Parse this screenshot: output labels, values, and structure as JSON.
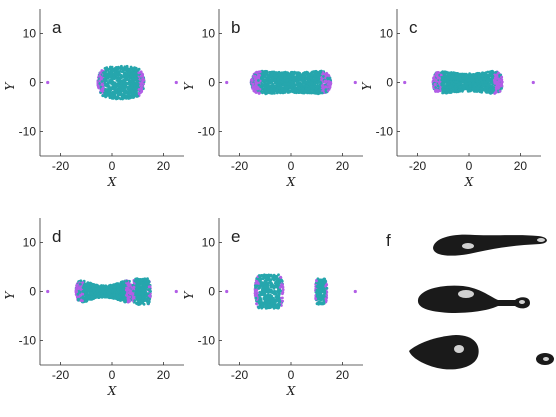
{
  "chart_data": [
    {
      "type": "scatter",
      "panel_label": "a",
      "xlabel": "X",
      "ylabel": "Y",
      "xlim": [
        -28,
        28
      ],
      "ylim": [
        -15,
        15
      ],
      "xticks": [
        -20,
        0,
        20
      ],
      "yticks": [
        10,
        0,
        -10
      ],
      "xtick_labels": [
        "-20",
        "0",
        "20"
      ],
      "ytick_labels": [
        "10",
        "0",
        "-10"
      ],
      "series": [
        {
          "role": "outer",
          "color": "#b25ee6",
          "values": [
            [
              -25,
              0
            ],
            [
              25,
              0
            ]
          ]
        },
        {
          "role": "cloud",
          "color": "#26a6ad",
          "lobes": [
            {
              "x0": -5.5,
              "x1": 12.5,
              "r_end": 2.6,
              "r_mid": 3.4,
              "edge_color": "#b25ee6"
            }
          ]
        }
      ]
    },
    {
      "type": "scatter",
      "panel_label": "b",
      "xlabel": "X",
      "ylabel": "Y",
      "xlim": [
        -28,
        28
      ],
      "ylim": [
        -15,
        15
      ],
      "xticks": [
        -20,
        0,
        20
      ],
      "yticks": [
        10,
        0,
        -10
      ],
      "xtick_labels": [
        "-20",
        "0",
        "20"
      ],
      "ytick_labels": [
        "10",
        "0",
        "-10"
      ],
      "series": [
        {
          "role": "outer",
          "color": "#b25ee6",
          "values": [
            [
              -25,
              0
            ],
            [
              25,
              0
            ]
          ]
        },
        {
          "role": "cloud",
          "color": "#26a6ad",
          "lobes": [
            {
              "x0": -15.5,
              "x1": 15.5,
              "r_end": 2.6,
              "r_mid": 2.1,
              "edge_color": "#b25ee6"
            }
          ]
        }
      ]
    },
    {
      "type": "scatter",
      "panel_label": "c",
      "xlabel": "X",
      "ylabel": "Y",
      "xlim": [
        -28,
        28
      ],
      "ylim": [
        -15,
        15
      ],
      "xticks": [
        -20,
        0,
        20
      ],
      "yticks": [
        10,
        0,
        -10
      ],
      "xtick_labels": [
        "-20",
        "0",
        "20"
      ],
      "ytick_labels": [
        "10",
        "0",
        "-10"
      ],
      "series": [
        {
          "role": "outer",
          "color": "#b25ee6",
          "values": [
            [
              -25,
              0
            ],
            [
              25,
              0
            ]
          ]
        },
        {
          "role": "cloud",
          "color": "#26a6ad",
          "lobes": [
            {
              "x0": -14,
              "x1": 13,
              "r_end": 2.8,
              "r_mid": 1.8,
              "edge_color": "#b25ee6"
            }
          ]
        }
      ]
    },
    {
      "type": "scatter",
      "panel_label": "d",
      "xlabel": "X",
      "ylabel": "Y",
      "xlim": [
        -28,
        28
      ],
      "ylim": [
        -15,
        15
      ],
      "xticks": [
        -20,
        0,
        20
      ],
      "yticks": [
        10,
        0,
        -10
      ],
      "xtick_labels": [
        "-20",
        "0",
        "20"
      ],
      "ytick_labels": [
        "10",
        "0",
        "-10"
      ],
      "series": [
        {
          "role": "outer",
          "color": "#b25ee6",
          "values": [
            [
              -25,
              0
            ],
            [
              25,
              0
            ]
          ]
        },
        {
          "role": "cloud",
          "color": "#26a6ad",
          "lobes": [
            {
              "x0": -14,
              "x1": 8,
              "r_end": 3.0,
              "r_mid": 1.2,
              "edge_color": "#b25ee6"
            },
            {
              "x0": 8,
              "x1": 15,
              "r_end": 2.8,
              "r_mid": 2.6,
              "edge_color": "#b25ee6"
            }
          ]
        }
      ]
    },
    {
      "type": "scatter",
      "panel_label": "e",
      "xlabel": "X",
      "ylabel": "Y",
      "xlim": [
        -28,
        28
      ],
      "ylim": [
        -15,
        15
      ],
      "xticks": [
        -20,
        0,
        20
      ],
      "yticks": [
        10,
        0,
        -10
      ],
      "xtick_labels": [
        "-20",
        "0",
        "20"
      ],
      "ytick_labels": [
        "10",
        "0",
        "-10"
      ],
      "series": [
        {
          "role": "outer",
          "color": "#b25ee6",
          "values": [
            [
              -25,
              0
            ],
            [
              25,
              0
            ]
          ]
        },
        {
          "role": "cloud",
          "color": "#26a6ad",
          "lobes": [
            {
              "x0": -14,
              "x1": -3,
              "r_end": 3.4,
              "r_mid": 3.5,
              "edge_color": "#b25ee6"
            },
            {
              "x0": 9.5,
              "x1": 14,
              "r_end": 2.6,
              "r_mid": 2.6,
              "edge_color": "#b25ee6"
            }
          ]
        }
      ]
    }
  ],
  "panel_f": {
    "label": "f",
    "surface_color": "#1a1a1a",
    "highlight_color": "#f2f2f2"
  }
}
